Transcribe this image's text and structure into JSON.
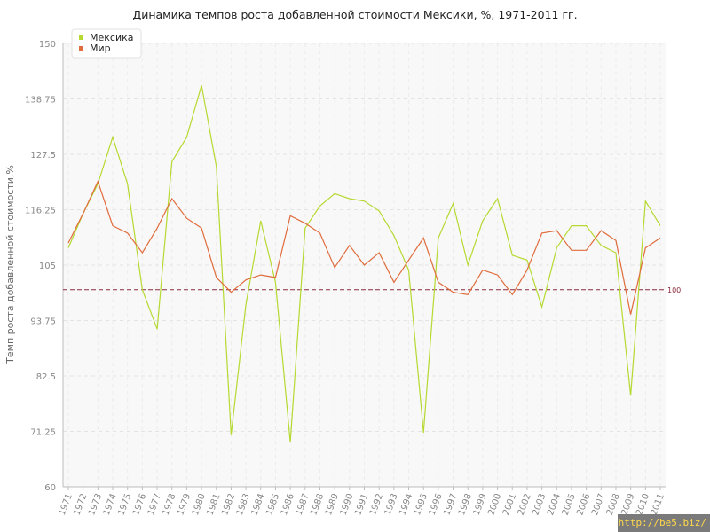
{
  "chart_data": {
    "type": "line",
    "title": "Динамика темпов роста добавленной стоимости Мексики, %, 1971-2011 гг.",
    "xlabel": "",
    "ylabel": "Темп роста добавленной стоимости,%",
    "ylim": [
      60,
      150
    ],
    "yticks": [
      "60",
      "71.25",
      "82.5",
      "93.75",
      "105",
      "116.25",
      "127.5",
      "138.75",
      "150"
    ],
    "x": [
      "1971",
      "1972",
      "1973",
      "1974",
      "1975",
      "1976",
      "1977",
      "1978",
      "1979",
      "1980",
      "1981",
      "1982",
      "1983",
      "1984",
      "1985",
      "1986",
      "1987",
      "1988",
      "1989",
      "1990",
      "1991",
      "1992",
      "1993",
      "1994",
      "1995",
      "1996",
      "1997",
      "1998",
      "1999",
      "2000",
      "2001",
      "2002",
      "2003",
      "2004",
      "2005",
      "2006",
      "2007",
      "2008",
      "2009",
      "2010",
      "2011"
    ],
    "series": [
      {
        "name": "Мексика",
        "color": "#b5d930",
        "values": [
          108.5,
          115.5,
          121.5,
          131.0,
          121.5,
          100.0,
          92.0,
          126.0,
          131.0,
          141.5,
          125.0,
          70.5,
          97.0,
          114.0,
          101.5,
          69.0,
          112.5,
          117.0,
          119.5,
          118.5,
          118.0,
          116.0,
          111.0,
          104.0,
          71.0,
          110.5,
          117.5,
          105.0,
          114.0,
          118.5,
          107.0,
          106.0,
          96.5,
          108.5,
          113.0,
          113.0,
          109.0,
          107.5,
          78.5,
          118.0,
          113.0
        ]
      },
      {
        "name": "Мир",
        "color": "#e06c3c",
        "values": [
          109.5,
          115.5,
          122.0,
          113.0,
          111.5,
          107.5,
          112.5,
          118.5,
          114.5,
          112.5,
          102.5,
          99.5,
          102.0,
          103.0,
          102.5,
          115.0,
          113.5,
          111.5,
          104.5,
          109.0,
          105.0,
          107.5,
          101.5,
          106.0,
          110.5,
          101.5,
          99.5,
          99.0,
          104.0,
          103.0,
          99.0,
          104.0,
          111.5,
          112.0,
          108.0,
          108.0,
          112.0,
          110.0,
          95.0,
          108.5,
          110.5
        ]
      }
    ],
    "reference_line": {
      "value": 100,
      "label": "100",
      "color": "#8b2a3a"
    },
    "legend": {
      "placement": "top-left"
    },
    "grid": true
  }
}
